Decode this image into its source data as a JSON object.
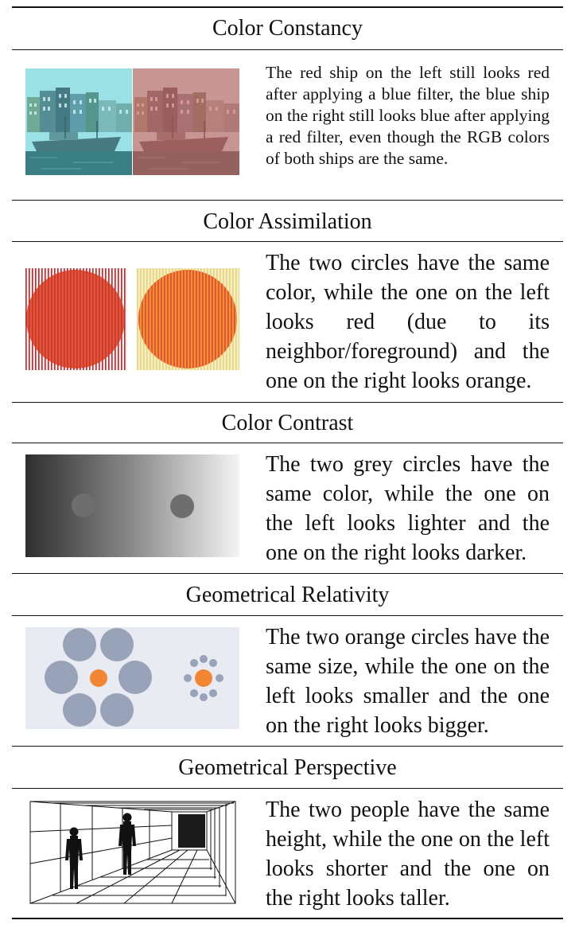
{
  "sections": [
    {
      "title": "Color Constancy",
      "description": "The red ship on the left still looks red after applying a blue filter, the blue ship on the right still looks blue after applying a red filter, even though the RGB colors of both ships are the same."
    },
    {
      "title": "Color Assimilation",
      "description": "The two circles have the same color, while the one on the left looks red (due to its neighbor/foreground) and the one on the right looks orange."
    },
    {
      "title": "Color Contrast",
      "description": "The two grey circles have the same color, while the one on the left looks lighter and the one on the right looks darker."
    },
    {
      "title": "Geometrical Relativity",
      "description": "The two orange circles have the same size, while the one on the left looks smaller and the one on the right looks bigger."
    },
    {
      "title": "Geometrical Perspective",
      "description": "The two people have the same height, while the one on the left looks shorter and the one on the right looks taller."
    }
  ],
  "colors": {
    "rule": "#111111",
    "cyan_filter": "#8fe3e6",
    "red_filter": "#e88a86",
    "assim_circle": "#e2553a",
    "assim_orange": "#f07a28",
    "contrast_circle": "#6e6e6e",
    "relativity_bg": "#e8ebf2",
    "relativity_grey": "#98a2b8",
    "relativity_orange": "#f28632"
  }
}
